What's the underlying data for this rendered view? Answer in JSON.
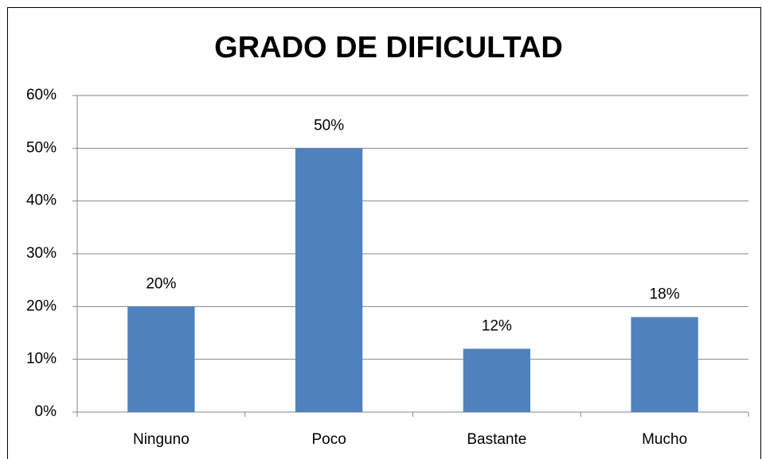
{
  "chart_data": {
    "type": "bar",
    "title": "GRADO DE DIFICULTAD",
    "categories": [
      "Ninguno",
      "Poco",
      "Bastante",
      "Mucho"
    ],
    "values": [
      20,
      50,
      12,
      18
    ],
    "value_labels": [
      "20%",
      "50%",
      "12%",
      "18%"
    ],
    "color": "#4f81bd",
    "ylim": [
      0,
      60
    ],
    "yticks": [
      {
        "value": 0,
        "label": "0%"
      },
      {
        "value": 10,
        "label": "10%"
      },
      {
        "value": 20,
        "label": "20%"
      },
      {
        "value": 30,
        "label": "30%"
      },
      {
        "value": 40,
        "label": "40%"
      },
      {
        "value": 50,
        "label": "50%"
      },
      {
        "value": 60,
        "label": "60%"
      }
    ],
    "grid": true
  }
}
